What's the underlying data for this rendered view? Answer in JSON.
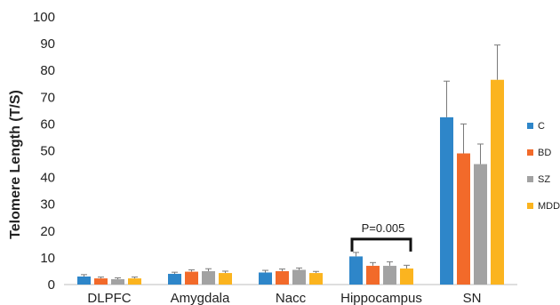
{
  "chart_data": {
    "type": "bar",
    "ylabel": "Telomere Length (T/S)",
    "ylim": [
      0,
      100
    ],
    "yticks": [
      0,
      10,
      20,
      30,
      40,
      50,
      60,
      70,
      80,
      90,
      100
    ],
    "categories": [
      "DLPFC",
      "Amygdala",
      "Nacc",
      "Hippocampus",
      "SN"
    ],
    "series": [
      {
        "name": "C",
        "color": "#2e86c9",
        "values": [
          3.0,
          4.0,
          4.5,
          10.5,
          62.5
        ],
        "errors": [
          0.7,
          0.6,
          0.8,
          1.5,
          13.5
        ]
      },
      {
        "name": "BD",
        "color": "#f26a2a",
        "values": [
          2.3,
          4.8,
          5.0,
          7.0,
          49.0
        ],
        "errors": [
          0.5,
          0.7,
          0.8,
          1.2,
          11.0
        ]
      },
      {
        "name": "SZ",
        "color": "#a2a2a2",
        "values": [
          2.0,
          5.0,
          5.5,
          7.0,
          45.0
        ],
        "errors": [
          0.5,
          0.9,
          0.7,
          1.5,
          7.5
        ]
      },
      {
        "name": "MDD",
        "color": "#fbb41f",
        "values": [
          2.3,
          4.3,
          4.3,
          6.0,
          76.5
        ],
        "errors": [
          0.5,
          0.7,
          0.6,
          1.2,
          13.0
        ]
      }
    ],
    "legend": "right",
    "grid": false,
    "annotations": [
      {
        "text": "P=0.005",
        "category": "Hippocampus",
        "y": 17
      }
    ]
  }
}
